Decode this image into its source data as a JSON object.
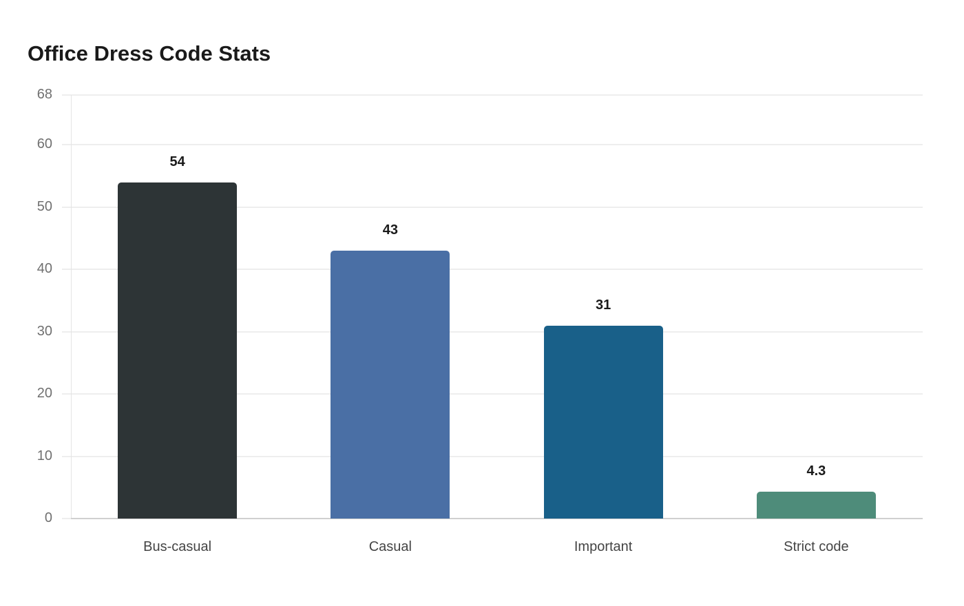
{
  "chart_data": {
    "type": "bar",
    "title": "Office Dress Code Stats",
    "categories": [
      "Bus-casual",
      "Casual",
      "Important",
      "Strict code"
    ],
    "values": [
      54,
      43,
      31,
      4.3
    ],
    "value_labels": [
      "54",
      "43",
      "31",
      "4.3"
    ],
    "colors": [
      "#2d3436",
      "#4a6fa5",
      "#196089",
      "#4e8c7a"
    ],
    "xlabel": "",
    "ylabel": "",
    "ylim": [
      0,
      68
    ],
    "yticks": [
      0,
      10,
      20,
      30,
      40,
      50,
      60,
      68
    ],
    "grid": true,
    "legend": "none"
  }
}
